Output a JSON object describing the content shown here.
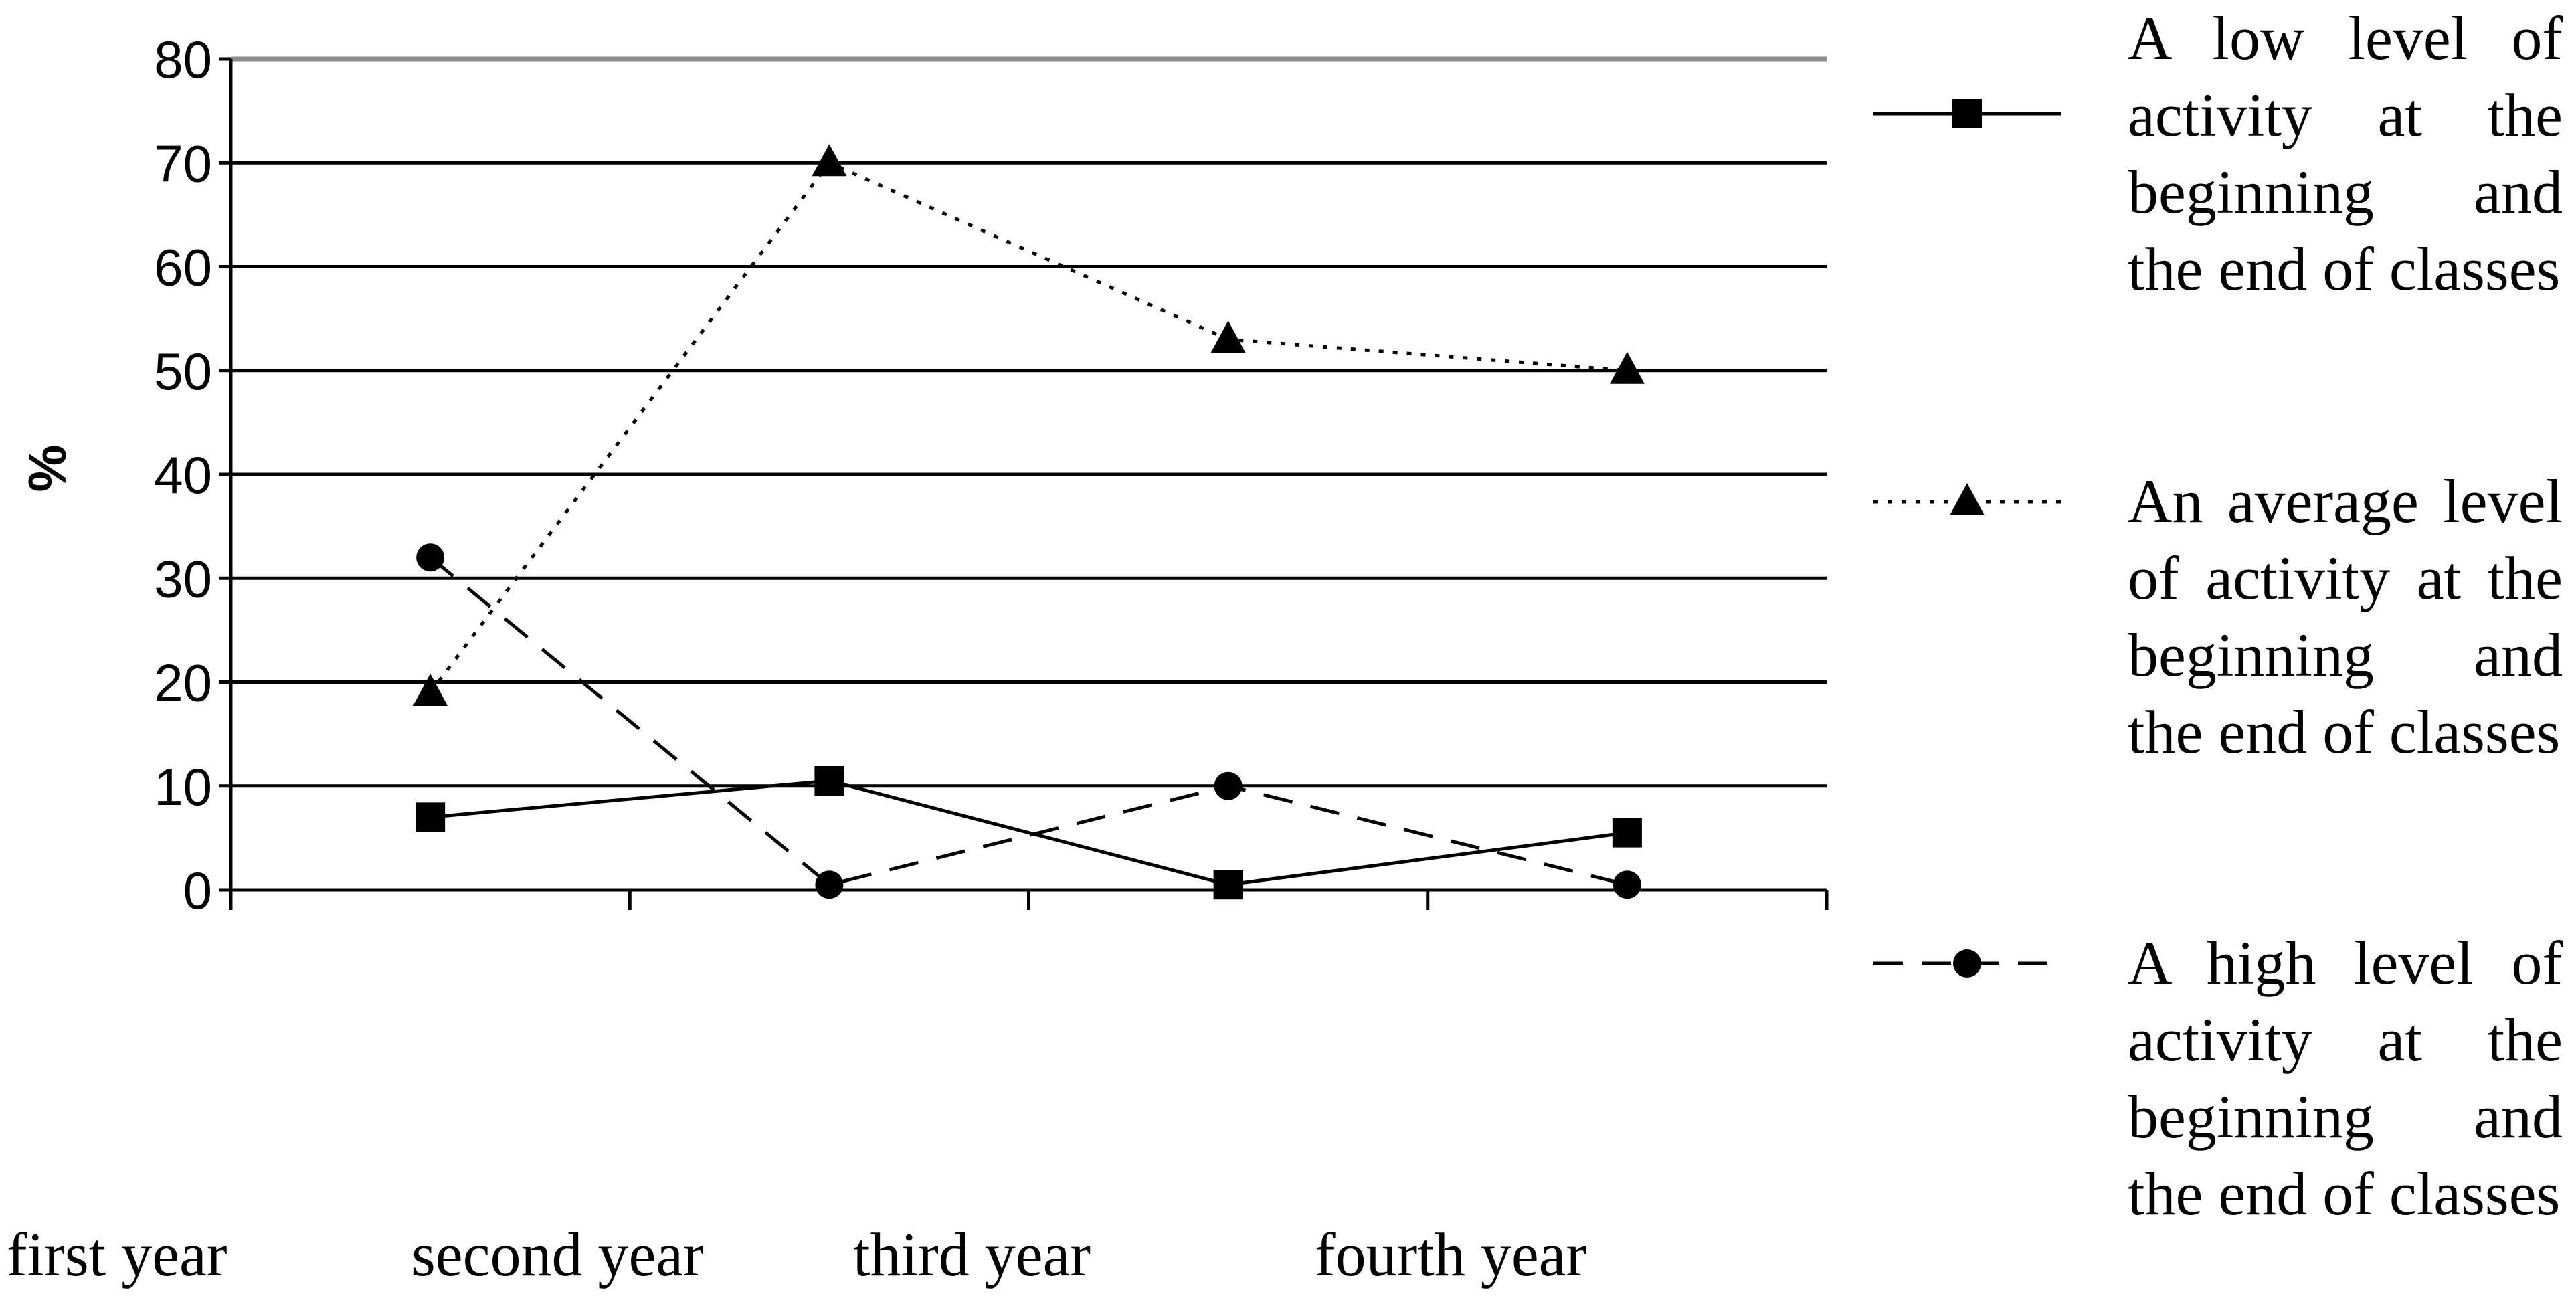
{
  "chart_data": {
    "type": "line",
    "categories": [
      "first year",
      "second year",
      "third year",
      "fourth year"
    ],
    "ylabel": "%",
    "xlabel": "",
    "ylim": [
      0,
      80
    ],
    "yticks": [
      "0",
      "10",
      "20",
      "30",
      "40",
      "50",
      "60",
      "70",
      "80"
    ],
    "grid": true,
    "legend_position": "right",
    "series": [
      {
        "name": "A low level of activity at the beginning and the end of classes",
        "marker": "square",
        "line_style": "solid",
        "values": [
          7,
          10.5,
          0.5,
          5.5
        ]
      },
      {
        "name": "An average level of activity at the beginning and the end of classes",
        "marker": "triangle",
        "line_style": "dotted",
        "values": [
          19,
          70,
          53,
          50
        ]
      },
      {
        "name": "A high level of activity at the beginning and the end of classes",
        "marker": "circle",
        "line_style": "dashed",
        "values": [
          32,
          0.5,
          10,
          0.5
        ]
      }
    ]
  }
}
